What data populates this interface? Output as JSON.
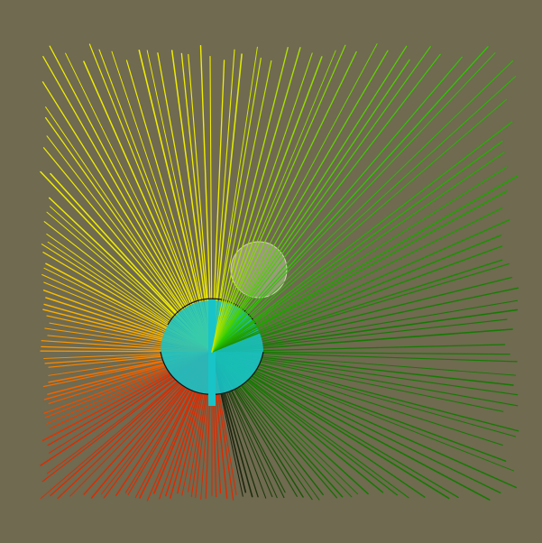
{
  "scene": {
    "background_color": "#6f6a50",
    "ray_count": 180,
    "ray_colors": {
      "red": "#dd2a00",
      "orange": "#ff9800",
      "yellow": "#f2ee00",
      "green": "#2ccc00",
      "dark_green": "#147a00",
      "shadow": "#1e1c10"
    },
    "sphere_cyan": "#18c4c8",
    "sphere_white": "#e8ecc8",
    "outline_color": "#101010"
  }
}
